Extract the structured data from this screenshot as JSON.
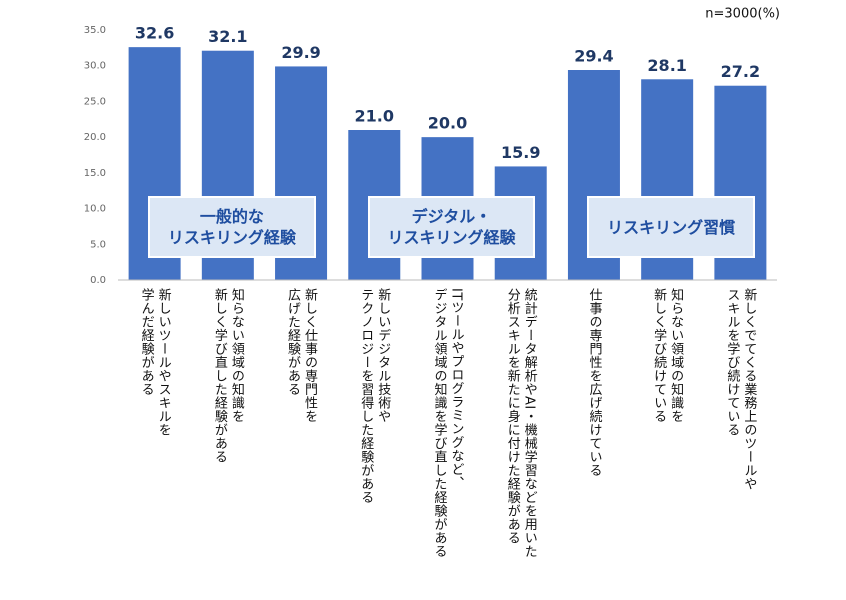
{
  "chart_data": {
    "type": "bar",
    "annotation": "n=3000(%)",
    "categories": [
      "新しいツールやスキルを\n学んだ経験がある",
      "知らない領域の知識を\n新しく学び直した経験がある",
      "新しく仕事の専門性を\n広げた経験がある",
      "新しいデジタル技術や\nテクノロジーを習得した経験がある",
      "ITツールやプログラミングなど、\nデジタル領域の知識を学び直した経験がある",
      "統計データ解析やAI・機械学習などを用いた\n分析スキルを新たに身に付けた経験がある",
      "仕事の専門性を広げ続けている",
      "知らない領域の知識を\n新しく学び続けている",
      "新しくでてくる業務上のツールや\nスキルを学び続けている"
    ],
    "values": [
      32.6,
      32.1,
      29.9,
      21.0,
      20.0,
      15.9,
      29.4,
      28.1,
      27.2
    ],
    "value_labels": [
      "32.6",
      "32.1",
      "29.9",
      "21.0",
      "20.0",
      "15.9",
      "29.4",
      "28.1",
      "27.2"
    ],
    "color": "#4472c4",
    "groups": [
      "一般的な\nリスキリング経験",
      "デジタル・\nリスキリング経験",
      "リスキリング習慣"
    ],
    "ylim": [
      0,
      35
    ],
    "yticks": [
      {
        "value": 0,
        "label": "0.0"
      },
      {
        "value": 5,
        "label": "5.0"
      },
      {
        "value": 10,
        "label": "10.0"
      },
      {
        "value": 15,
        "label": "15.0"
      },
      {
        "value": 20,
        "label": "20.0"
      },
      {
        "value": 25,
        "label": "25.0"
      },
      {
        "value": 30,
        "label": "30.0"
      },
      {
        "value": 35,
        "label": "35.0"
      }
    ],
    "grid": false
  }
}
